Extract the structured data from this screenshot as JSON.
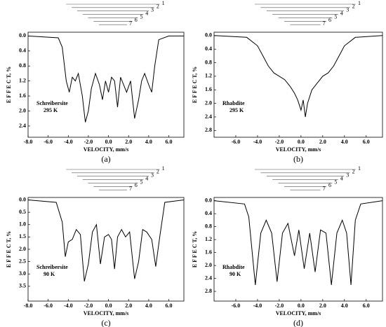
{
  "chart_data": [
    {
      "type": "line",
      "panel_label": "(a)",
      "sample": "Schreibersite",
      "temperature": "295 K",
      "xlabel": "VELOCITY,  mm/s",
      "ylabel": "E F F E C T, %",
      "y_inverted": true,
      "component_labels": [
        "1",
        "2",
        "3",
        "4",
        "5",
        "6",
        "7"
      ],
      "xlim": [
        -8,
        7.5
      ],
      "xticks": [
        {
          "value": -8,
          "label": "-8.0"
        },
        {
          "value": -6,
          "label": "-6.0"
        },
        {
          "value": -4,
          "label": "-4.0"
        },
        {
          "value": -2,
          "label": "-2.0"
        },
        {
          "value": 0,
          "label": "0.0"
        },
        {
          "value": 2,
          "label": "2.0"
        },
        {
          "value": 4,
          "label": "4.0"
        },
        {
          "value": 6,
          "label": "6.0"
        }
      ],
      "ylim": [
        -0.1,
        2.7
      ],
      "yticks": [
        {
          "value": 0,
          "label": "0.0"
        },
        0.4,
        0.8,
        1.2,
        1.6,
        {
          "value": 2,
          "label": "2.0"
        },
        2.4
      ],
      "x": [
        -8,
        -5,
        -4.6,
        -4.2,
        -3.9,
        -3.6,
        -3.3,
        -3.0,
        -2.6,
        -2.3,
        -2.0,
        -1.7,
        -1.3,
        -0.9,
        -0.6,
        -0.3,
        0,
        0.3,
        0.6,
        0.9,
        1.2,
        1.5,
        1.8,
        2.2,
        2.6,
        3.0,
        3.3,
        3.6,
        4.0,
        4.3,
        4.6,
        5.0,
        6,
        7.5
      ],
      "series": [
        {
          "color": "#000000",
          "values": [
            0,
            0.05,
            0.3,
            1.2,
            1.5,
            1.1,
            1.2,
            1.0,
            1.6,
            2.3,
            2.0,
            1.4,
            1.0,
            1.3,
            1.7,
            1.2,
            1.5,
            1.1,
            1.2,
            1.9,
            1.1,
            1.3,
            1.5,
            1.2,
            2.2,
            1.7,
            1.2,
            1.0,
            1.3,
            1.5,
            0.8,
            0.1,
            0,
            0
          ]
        }
      ]
    },
    {
      "type": "line",
      "panel_label": "(b)",
      "sample": "Rhabdite",
      "temperature": "295 K",
      "xlabel": "VELOCITY,  mm/s",
      "ylabel": "E F F E C T, %",
      "y_inverted": true,
      "component_labels": [
        "1",
        "2",
        "3",
        "4",
        "5",
        "6",
        "7"
      ],
      "xlim": [
        -8,
        7.5
      ],
      "xticks": [
        {
          "value": -6,
          "label": "-6.0"
        },
        {
          "value": -4,
          "label": "-4.0"
        },
        {
          "value": -2,
          "label": "-2.0"
        },
        {
          "value": 0,
          "label": "0.0"
        },
        {
          "value": 2,
          "label": "2.0"
        },
        {
          "value": 4,
          "label": "4.0"
        },
        {
          "value": 6,
          "label": "6.0"
        }
      ],
      "ylim": [
        -0.1,
        3.0
      ],
      "yticks": [
        {
          "value": 0,
          "label": "0.0"
        },
        0.4,
        0.8,
        1.2,
        1.6,
        {
          "value": 2,
          "label": "2.0"
        },
        2.4,
        2.8
      ],
      "x": [
        -8,
        -5,
        -4,
        -3.5,
        -3,
        -2.5,
        -2,
        -1.5,
        -1,
        -0.6,
        -0.3,
        0,
        0.2,
        0.4,
        0.6,
        1,
        1.5,
        2,
        2.5,
        3,
        3.5,
        4,
        5,
        7.5
      ],
      "series": [
        {
          "color": "#000000",
          "values": [
            0,
            0.05,
            0.3,
            0.6,
            0.9,
            1.1,
            1.2,
            1.3,
            1.5,
            1.7,
            1.9,
            2.2,
            1.9,
            2.4,
            2.0,
            1.6,
            1.4,
            1.2,
            1.1,
            0.9,
            0.6,
            0.3,
            0.05,
            0
          ]
        }
      ]
    },
    {
      "type": "line",
      "panel_label": "(c)",
      "sample": "Schreibersite",
      "temperature": "90 K",
      "xlabel": "VELOCITY,  mm/s",
      "ylabel": "E F F E C T, %",
      "y_inverted": true,
      "component_labels": [
        "1",
        "2",
        "3",
        "4",
        "5",
        "6",
        "7"
      ],
      "xlim": [
        -8,
        7.5
      ],
      "xticks": [
        {
          "value": -8,
          "label": "-8.0"
        },
        {
          "value": -6,
          "label": "-6.0"
        },
        {
          "value": -4,
          "label": "-4.0"
        },
        {
          "value": -2,
          "label": "-2.0"
        },
        {
          "value": 0,
          "label": "0.0"
        },
        {
          "value": 2,
          "label": "2.0"
        },
        {
          "value": 4,
          "label": "4.0"
        },
        {
          "value": 6,
          "label": "6.0"
        }
      ],
      "ylim": [
        -0.1,
        4.1
      ],
      "yticks": [
        {
          "value": 0,
          "label": "0.0"
        },
        0.5,
        {
          "value": 1,
          "label": "1.0"
        },
        1.5,
        {
          "value": 2,
          "label": "2.0"
        },
        2.5,
        {
          "value": 3,
          "label": "3.0"
        },
        3.5
      ],
      "x": [
        -8,
        -5.2,
        -4.6,
        -4.3,
        -4.0,
        -3.6,
        -3.2,
        -2.8,
        -2.4,
        -2.0,
        -1.6,
        -1.2,
        -0.8,
        -0.4,
        0,
        0.3,
        0.6,
        0.9,
        1.3,
        1.7,
        2.1,
        2.6,
        3.0,
        3.4,
        3.8,
        4.3,
        4.7,
        5.1,
        5.6,
        7.5
      ],
      "series": [
        {
          "color": "#000000",
          "values": [
            0,
            0.1,
            0.9,
            2.3,
            1.7,
            1.6,
            1.2,
            1.4,
            3.3,
            2.6,
            1.3,
            1.0,
            2.6,
            1.5,
            1.4,
            1.6,
            2.8,
            1.5,
            1.2,
            1.5,
            1.3,
            3.2,
            2.5,
            1.2,
            1.3,
            1.6,
            2.7,
            1.5,
            0.1,
            0
          ]
        }
      ]
    },
    {
      "type": "line",
      "panel_label": "(d)",
      "sample": "Rhabdite",
      "temperature": "90 K",
      "xlabel": "VELOCITY,  mm/s",
      "ylabel": "E F F E C T, %",
      "y_inverted": true,
      "component_labels": [
        "1",
        "2",
        "3",
        "4",
        "5",
        "6",
        "7"
      ],
      "xlim": [
        -8,
        7.5
      ],
      "xticks": [
        {
          "value": -6,
          "label": "-6.0"
        },
        {
          "value": -4,
          "label": "-4.0"
        },
        {
          "value": -2,
          "label": "-2.0"
        },
        {
          "value": 0,
          "label": "0.0"
        },
        {
          "value": 2,
          "label": "2.0"
        },
        {
          "value": 4,
          "label": "4.0"
        },
        {
          "value": 6,
          "label": "6.0"
        }
      ],
      "ylim": [
        -0.1,
        3.1
      ],
      "yticks": [
        {
          "value": 0,
          "label": "0.0"
        },
        0.4,
        0.8,
        1.2,
        1.6,
        {
          "value": 2,
          "label": "2.0"
        },
        2.4,
        2.8
      ],
      "x": [
        -8,
        -5.2,
        -4.8,
        -4.2,
        -3.7,
        -3.2,
        -2.7,
        -2.2,
        -1.7,
        -1.2,
        -0.6,
        -0.2,
        0.3,
        0.8,
        1.3,
        1.8,
        2.3,
        2.8,
        3.3,
        3.8,
        4.2,
        4.6,
        5.0,
        5.5,
        7.5
      ],
      "series": [
        {
          "color": "#000000",
          "values": [
            0,
            0.1,
            0.5,
            2.6,
            1.0,
            0.6,
            1.0,
            2.5,
            1.0,
            0.7,
            1.7,
            0.9,
            2.1,
            1.0,
            2.2,
            0.9,
            1.0,
            2.6,
            1.0,
            0.6,
            1.0,
            2.6,
            0.6,
            0.1,
            0
          ]
        }
      ]
    }
  ]
}
